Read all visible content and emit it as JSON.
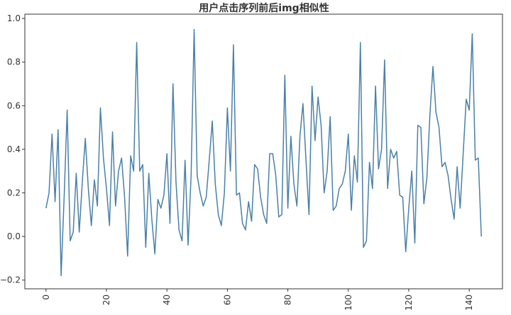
{
  "chart_data": {
    "type": "line",
    "title": "用户点击序列前后img相似性",
    "xlabel": "",
    "ylabel": "",
    "xlim": [
      -7,
      151
    ],
    "ylim": [
      -0.24,
      1.02
    ],
    "x_ticks": [
      0,
      20,
      40,
      60,
      80,
      100,
      120,
      140
    ],
    "x_tick_labels": [
      "0",
      "20",
      "40",
      "60",
      "80",
      "100",
      "120",
      "140"
    ],
    "y_ticks": [
      -0.2,
      0.0,
      0.2,
      0.4,
      0.6,
      0.8,
      1.0
    ],
    "y_tick_labels": [
      "−0.2",
      "0.0",
      "0.2",
      "0.4",
      "0.6",
      "0.8",
      "1.0"
    ],
    "grid": false,
    "legend": "none",
    "series": [
      {
        "color": "#4a80a8",
        "x": [
          0,
          1,
          2,
          3,
          4,
          5,
          6,
          7,
          8,
          9,
          10,
          11,
          12,
          13,
          14,
          15,
          16,
          17,
          18,
          19,
          20,
          21,
          22,
          23,
          24,
          25,
          26,
          27,
          28,
          29,
          30,
          31,
          32,
          33,
          34,
          35,
          36,
          37,
          38,
          39,
          40,
          41,
          42,
          43,
          44,
          45,
          46,
          47,
          48,
          49,
          50,
          51,
          52,
          53,
          54,
          55,
          56,
          57,
          58,
          59,
          60,
          61,
          62,
          63,
          64,
          65,
          66,
          67,
          68,
          69,
          70,
          71,
          72,
          73,
          74,
          75,
          76,
          77,
          78,
          79,
          80,
          81,
          82,
          83,
          84,
          85,
          86,
          87,
          88,
          89,
          90,
          91,
          92,
          93,
          94,
          95,
          96,
          97,
          98,
          99,
          100,
          101,
          102,
          103,
          104,
          105,
          106,
          107,
          108,
          109,
          110,
          111,
          112,
          113,
          114,
          115,
          116,
          117,
          118,
          119,
          120,
          121,
          122,
          123,
          124,
          125,
          126,
          127,
          128,
          129,
          130,
          131,
          132,
          133,
          134,
          135,
          136,
          137,
          138,
          139,
          140,
          141,
          142,
          143,
          144
        ],
        "values": [
          0.13,
          0.2,
          0.47,
          0.16,
          0.49,
          -0.18,
          0.18,
          0.58,
          -0.02,
          0.02,
          0.29,
          0.02,
          0.25,
          0.45,
          0.22,
          0.05,
          0.26,
          0.14,
          0.59,
          0.36,
          0.22,
          0.05,
          0.48,
          0.14,
          0.3,
          0.36,
          0.18,
          -0.09,
          0.37,
          0.3,
          0.89,
          0.3,
          0.33,
          -0.05,
          0.29,
          0.08,
          -0.08,
          0.17,
          0.13,
          0.19,
          0.38,
          0.06,
          0.7,
          0.25,
          0.03,
          -0.02,
          0.35,
          -0.04,
          0.28,
          0.95,
          0.28,
          0.2,
          0.14,
          0.18,
          0.35,
          0.53,
          0.24,
          0.1,
          0.05,
          0.2,
          0.59,
          0.3,
          0.88,
          0.19,
          0.2,
          0.06,
          0.03,
          0.16,
          0.07,
          0.33,
          0.31,
          0.18,
          0.1,
          0.06,
          0.38,
          0.38,
          0.28,
          0.09,
          0.1,
          0.74,
          0.13,
          0.46,
          0.24,
          0.14,
          0.46,
          0.61,
          0.35,
          0.1,
          0.69,
          0.44,
          0.64,
          0.51,
          0.2,
          0.3,
          0.55,
          0.12,
          0.14,
          0.22,
          0.24,
          0.3,
          0.47,
          0.12,
          0.37,
          0.25,
          0.89,
          -0.05,
          -0.02,
          0.34,
          0.22,
          0.69,
          0.31,
          0.4,
          0.81,
          0.22,
          0.4,
          0.36,
          0.39,
          0.19,
          0.18,
          -0.07,
          0.13,
          0.3,
          -0.03,
          0.51,
          0.5,
          0.15,
          0.27,
          0.56,
          0.78,
          0.57,
          0.5,
          0.32,
          0.34,
          0.28,
          0.17,
          0.08,
          0.32,
          0.13,
          0.38,
          0.63,
          0.58,
          0.93,
          0.35,
          0.36,
          0.0
        ]
      }
    ]
  }
}
